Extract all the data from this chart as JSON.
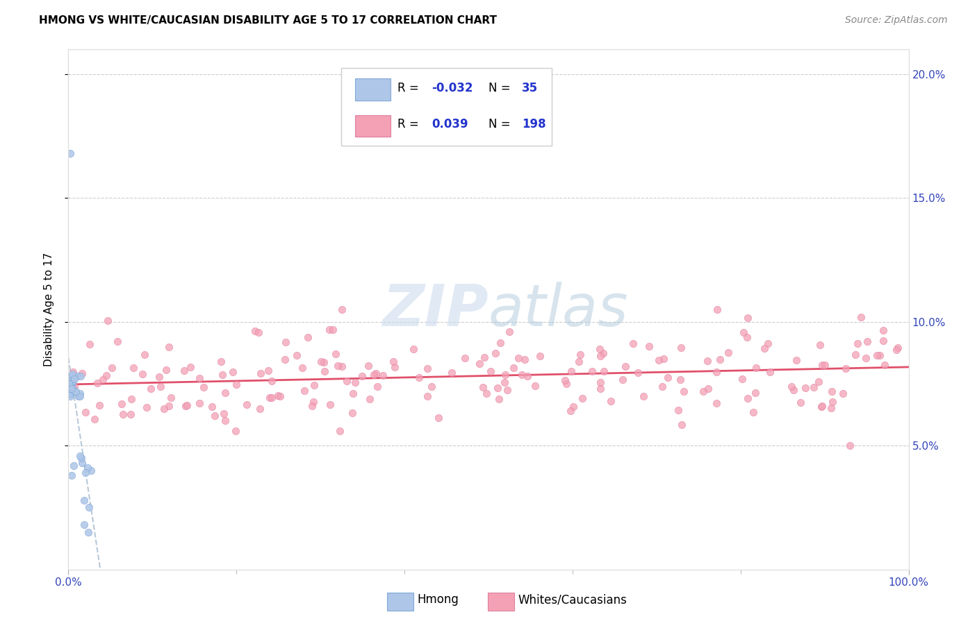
{
  "title": "HMONG VS WHITE/CAUCASIAN DISABILITY AGE 5 TO 17 CORRELATION CHART",
  "source": "Source: ZipAtlas.com",
  "ylabel": "Disability Age 5 to 17",
  "xlim": [
    0,
    100
  ],
  "ylim": [
    0,
    21
  ],
  "ytick_labels": [
    "5.0%",
    "10.0%",
    "15.0%",
    "20.0%"
  ],
  "ytick_values": [
    5,
    10,
    15,
    20
  ],
  "xtick_labels": [
    "0.0%",
    "100.0%"
  ],
  "xtick_values": [
    0,
    100
  ],
  "hmong_scatter_color": "#aec6e8",
  "hmong_scatter_edge": "#80a8d8",
  "white_scatter_color": "#f4a0b5",
  "white_scatter_edge": "#e080a0",
  "hmong_line_color": "#b8c8d8",
  "white_line_color": "#e0506a",
  "watermark_color": "#d4e4f4",
  "legend_R1": "-0.032",
  "legend_N1": "35",
  "legend_R2": "0.039",
  "legend_N2": "198",
  "title_fontsize": 11,
  "axis_label_fontsize": 11,
  "tick_fontsize": 11,
  "legend_fontsize": 12
}
